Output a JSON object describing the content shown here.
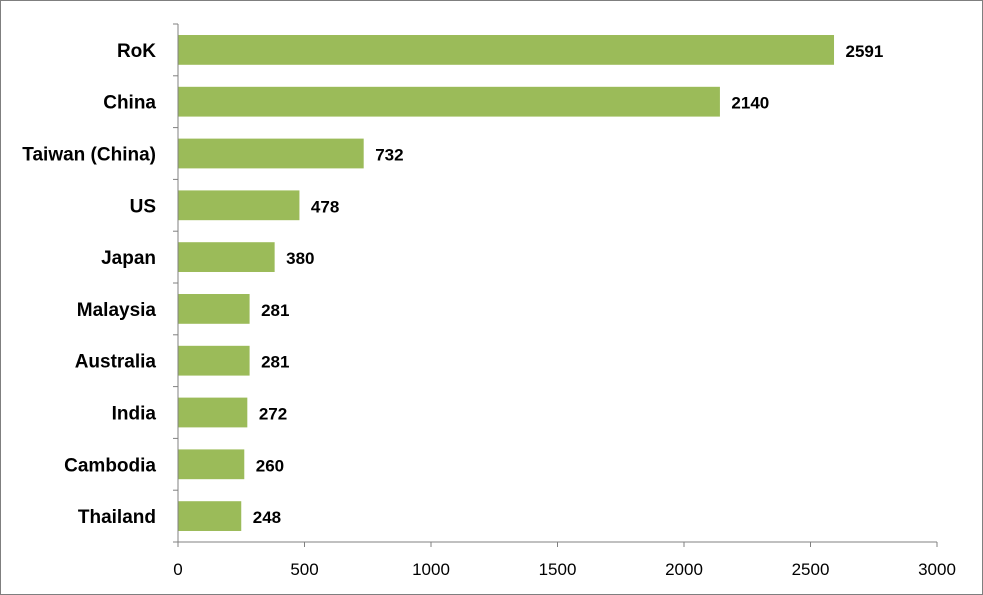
{
  "chart_data": {
    "type": "bar",
    "orientation": "horizontal",
    "categories": [
      "RoK",
      "China",
      "Taiwan (China)",
      "US",
      "Japan",
      "Malaysia",
      "Australia",
      "India",
      "Cambodia",
      "Thailand"
    ],
    "values": [
      2591,
      2140,
      732,
      478,
      380,
      281,
      281,
      272,
      260,
      248
    ],
    "data_labels": [
      "2591",
      "2140",
      "732",
      "478",
      "380",
      "281",
      "281",
      "272",
      "260",
      "248"
    ],
    "xlim": [
      0,
      3000
    ],
    "x_ticks": [
      0,
      500,
      1000,
      1500,
      2000,
      2500,
      3000
    ],
    "x_tick_labels": [
      "0",
      "500",
      "1000",
      "1500",
      "2000",
      "2500",
      "3000"
    ],
    "bar_color": "#9BBB59",
    "axis_color": "#808080",
    "grid": false,
    "legend": "none",
    "title": "",
    "xlabel": "",
    "ylabel": ""
  }
}
